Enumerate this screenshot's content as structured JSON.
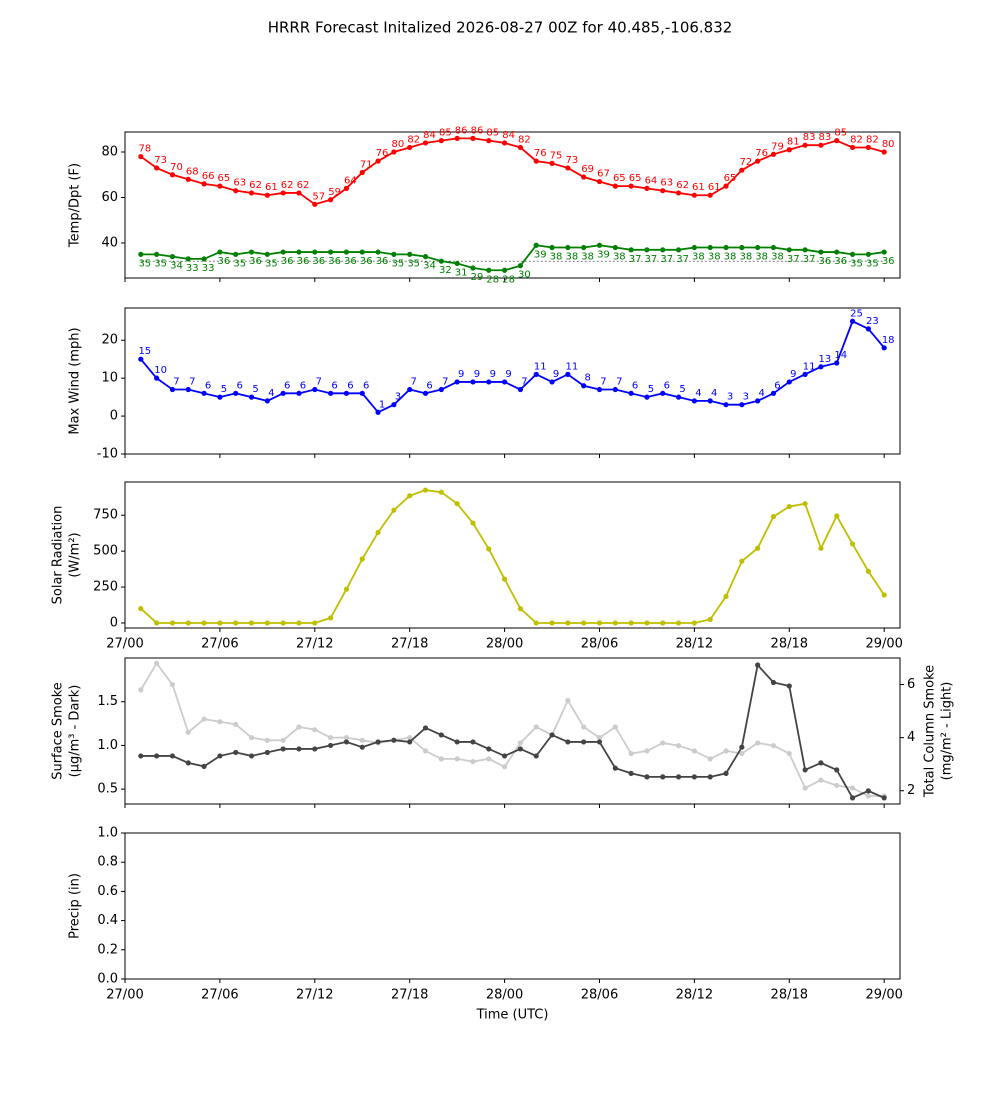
{
  "title": "HRRR Forecast Initalized 2026-08-27 00Z for 40.485,-106.832",
  "chart_data": [
    {
      "type": "line",
      "ylabel": [
        "Temp/Dpt (F)"
      ],
      "x": [
        1,
        2,
        3,
        4,
        5,
        6,
        7,
        8,
        9,
        10,
        11,
        12,
        13,
        14,
        15,
        16,
        17,
        18,
        19,
        20,
        21,
        22,
        23,
        24,
        25,
        26,
        27,
        28,
        29,
        30,
        31,
        32,
        33,
        34,
        35,
        36,
        37,
        38,
        39,
        40,
        41,
        42,
        43,
        44,
        45,
        46,
        47,
        48
      ],
      "xlim": [
        0,
        49
      ],
      "ylim": [
        24.6,
        88.8
      ],
      "yticks": [
        40,
        60,
        80
      ],
      "hline": 32,
      "series": [
        {
          "color": "#ff0000",
          "labels": "above",
          "values": [
            78,
            73,
            70,
            68,
            66,
            65,
            63,
            62,
            61,
            62,
            62,
            57,
            59,
            64,
            71,
            76,
            80,
            82,
            84,
            85,
            86,
            86,
            85,
            84,
            82,
            76,
            75,
            73,
            69,
            67,
            65,
            65,
            64,
            63,
            62,
            61,
            61,
            65,
            72,
            76,
            79,
            81,
            83,
            83,
            85,
            82,
            82,
            80
          ]
        },
        {
          "color": "#008000",
          "labels": "below",
          "values": [
            35,
            35,
            34,
            33,
            33,
            36,
            35,
            36,
            35,
            36,
            36,
            36,
            36,
            36,
            36,
            36,
            35,
            35,
            34,
            32,
            31,
            29,
            28,
            28,
            30,
            39,
            38,
            38,
            38,
            39,
            38,
            37,
            37,
            37,
            37,
            38,
            38,
            38,
            38,
            38,
            38,
            37,
            37,
            36,
            36,
            35,
            35,
            36
          ]
        }
      ]
    },
    {
      "type": "line",
      "ylabel": [
        "Max Wind (mph)"
      ],
      "x": [
        1,
        2,
        3,
        4,
        5,
        6,
        7,
        8,
        9,
        10,
        11,
        12,
        13,
        14,
        15,
        16,
        17,
        18,
        19,
        20,
        21,
        22,
        23,
        24,
        25,
        26,
        27,
        28,
        29,
        30,
        31,
        32,
        33,
        34,
        35,
        36,
        37,
        38,
        39,
        40,
        41,
        42,
        43,
        44,
        45,
        46,
        47,
        48
      ],
      "xlim": [
        0,
        49
      ],
      "ylim": [
        -10,
        28.5
      ],
      "yticks": [
        -10,
        0,
        10,
        20
      ],
      "series": [
        {
          "color": "#0000ff",
          "labels": "above",
          "values": [
            15,
            10,
            7,
            7,
            6,
            5,
            6,
            5,
            4,
            6,
            6,
            7,
            6,
            6,
            6,
            1,
            3,
            7,
            6,
            7,
            9,
            9,
            9,
            9,
            7,
            11,
            9,
            11,
            8,
            7,
            7,
            6,
            5,
            6,
            5,
            4,
            4,
            3,
            3,
            4,
            6,
            9,
            11,
            13,
            14,
            25,
            23,
            18
          ]
        }
      ]
    },
    {
      "type": "line",
      "ylabel": [
        "Solar Radiation",
        "(W/m²)"
      ],
      "x": [
        1,
        2,
        3,
        4,
        5,
        6,
        7,
        8,
        9,
        10,
        11,
        12,
        13,
        14,
        15,
        16,
        17,
        18,
        19,
        20,
        21,
        22,
        23,
        24,
        25,
        26,
        27,
        28,
        29,
        30,
        31,
        32,
        33,
        34,
        35,
        36,
        37,
        38,
        39,
        40,
        41,
        42,
        43,
        44,
        45,
        46,
        47,
        48
      ],
      "xlim": [
        0,
        49
      ],
      "ylim": [
        -35,
        981
      ],
      "yticks": [
        0,
        250,
        500,
        750
      ],
      "xticks": [
        {
          "value": 0,
          "label": "27/00"
        },
        {
          "value": 6,
          "label": "27/06"
        },
        {
          "value": 12,
          "label": "27/12"
        },
        {
          "value": 18,
          "label": "27/18"
        },
        {
          "value": 24,
          "label": "28/00"
        },
        {
          "value": 30,
          "label": "28/06"
        },
        {
          "value": 36,
          "label": "28/12"
        },
        {
          "value": 42,
          "label": "28/18"
        },
        {
          "value": 48,
          "label": "29/00"
        }
      ],
      "series": [
        {
          "color": "#bfbf00",
          "values": [
            100,
            0,
            0,
            0,
            0,
            0,
            0,
            0,
            0,
            0,
            0,
            0,
            35,
            235,
            445,
            630,
            785,
            885,
            925,
            910,
            830,
            695,
            515,
            305,
            100,
            0,
            0,
            0,
            0,
            0,
            0,
            0,
            0,
            0,
            0,
            0,
            25,
            185,
            430,
            520,
            740,
            810,
            830,
            520,
            745,
            550,
            360,
            195
          ]
        }
      ]
    },
    {
      "type": "line",
      "ylabel": [
        "Surface Smoke",
        "(μg/m³ - Dark)"
      ],
      "y2label": [
        "Total Column Smoke",
        "(mg/m² - Light)"
      ],
      "x": [
        1,
        2,
        3,
        4,
        5,
        6,
        7,
        8,
        9,
        10,
        11,
        12,
        13,
        14,
        15,
        16,
        17,
        18,
        19,
        20,
        21,
        22,
        23,
        24,
        25,
        26,
        27,
        28,
        29,
        30,
        31,
        32,
        33,
        34,
        35,
        36,
        37,
        38,
        39,
        40,
        41,
        42,
        43,
        44,
        45,
        46,
        47,
        48
      ],
      "xlim": [
        0,
        49
      ],
      "ylim": [
        0.33,
        2.0
      ],
      "yticks": [
        0.5,
        {
          "value": 1,
          "label": "1.0"
        },
        1.5
      ],
      "y2lim": [
        1.5,
        7.0
      ],
      "y2ticks": [
        2,
        4,
        6
      ],
      "series": [
        {
          "color": "#cccccc",
          "axis": "y2",
          "values": [
            5.8,
            6.8,
            6.0,
            4.2,
            4.7,
            4.6,
            4.5,
            4.0,
            3.9,
            3.9,
            4.4,
            4.3,
            4.0,
            4.0,
            3.9,
            3.8,
            3.9,
            4.0,
            3.5,
            3.2,
            3.2,
            3.1,
            3.2,
            2.9,
            3.8,
            4.4,
            4.1,
            5.4,
            4.4,
            4.0,
            4.4,
            3.4,
            3.5,
            3.8,
            3.7,
            3.5,
            3.2,
            3.5,
            3.4,
            3.8,
            3.7,
            3.4,
            2.1,
            2.4,
            2.2,
            2.1,
            1.8,
            1.8
          ]
        },
        {
          "color": "#444444",
          "values": [
            0.88,
            0.88,
            0.88,
            0.8,
            0.76,
            0.88,
            0.92,
            0.88,
            0.92,
            0.96,
            0.96,
            0.96,
            1.0,
            1.04,
            0.98,
            1.04,
            1.06,
            1.04,
            1.2,
            1.12,
            1.04,
            1.04,
            0.96,
            0.88,
            0.96,
            0.88,
            1.12,
            1.04,
            1.04,
            1.04,
            0.74,
            0.68,
            0.64,
            0.64,
            0.64,
            0.64,
            0.64,
            0.68,
            0.98,
            1.92,
            1.72,
            1.68,
            0.72,
            0.8,
            0.72,
            0.4,
            0.48,
            0.4
          ]
        }
      ]
    },
    {
      "type": "line",
      "ylabel": [
        "Precip (in)"
      ],
      "xlabel": "Time (UTC)",
      "xlim": [
        0,
        49
      ],
      "ylim": [
        0,
        1
      ],
      "yticks": [
        {
          "value": 0,
          "label": "0.0"
        },
        0.2,
        0.4,
        0.6,
        0.8,
        {
          "value": 1,
          "label": "1.0"
        }
      ],
      "xticks": [
        {
          "value": 0,
          "label": "27/00"
        },
        {
          "value": 6,
          "label": "27/06"
        },
        {
          "value": 12,
          "label": "27/12"
        },
        {
          "value": 18,
          "label": "27/18"
        },
        {
          "value": 24,
          "label": "28/00"
        },
        {
          "value": 30,
          "label": "28/06"
        },
        {
          "value": 36,
          "label": "28/12"
        },
        {
          "value": 42,
          "label": "28/18"
        },
        {
          "value": 48,
          "label": "29/00"
        }
      ],
      "series": []
    }
  ]
}
